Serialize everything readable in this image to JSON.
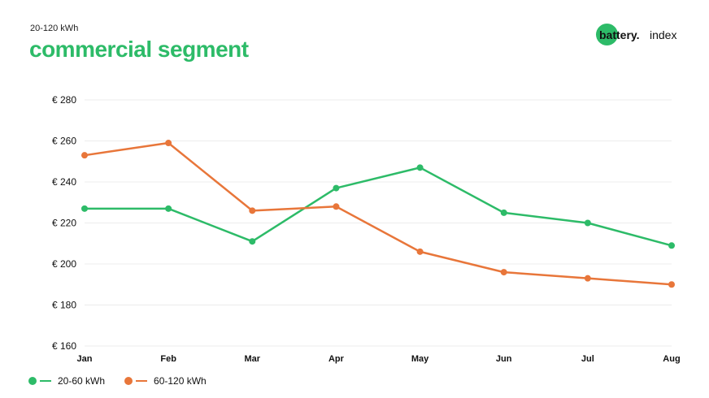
{
  "header": {
    "subtitle": "20-120 kWh",
    "title": "commercial segment"
  },
  "logo": {
    "part1": "battery.",
    "part2": "index"
  },
  "colors": {
    "green": "#2dbb68",
    "orange": "#e8763a",
    "grid": "#ececec"
  },
  "chart_data": {
    "type": "line",
    "categories": [
      "Jan",
      "Feb",
      "Mar",
      "Apr",
      "May",
      "Jun",
      "Jul",
      "Aug"
    ],
    "series": [
      {
        "name": "20-60 kWh",
        "color": "#2dbb68",
        "values": [
          227,
          227,
          211,
          237,
          247,
          225,
          220,
          209
        ]
      },
      {
        "name": "60-120 kWh",
        "color": "#e8763a",
        "values": [
          253,
          259,
          226,
          228,
          206,
          196,
          193,
          190
        ]
      }
    ],
    "yticks": [
      "€ 280",
      "€ 260",
      "€ 240",
      "€ 220",
      "€ 200",
      "€ 180",
      "€ 160"
    ],
    "ytick_values": [
      280,
      260,
      240,
      220,
      200,
      180,
      160
    ],
    "ylim": [
      160,
      280
    ],
    "grid": true,
    "legend_position": "bottom-left"
  }
}
